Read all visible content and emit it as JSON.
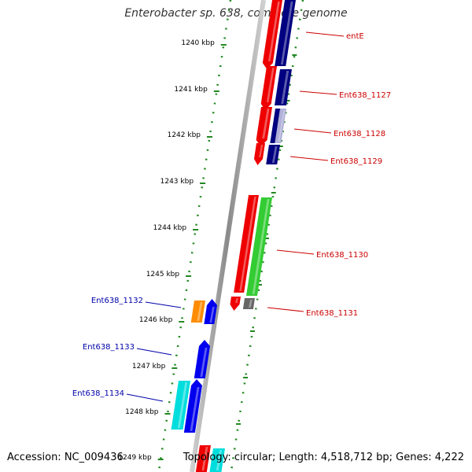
{
  "title": "Enterobacter sp. 638, complete genome",
  "footer": {
    "accession": "Accession: NC_009436",
    "stats": "Topology: circular; Length: 4,518,712 bp; Genes: 4,222"
  },
  "ticks": [
    "1240 kbp",
    "1241 kbp",
    "1242 kbp",
    "1243 kbp",
    "1244 kbp",
    "1245 kbp",
    "1246 kbp",
    "1247 kbp",
    "1248 kbp",
    "1249 kbp"
  ],
  "genes": {
    "right": [
      "entE",
      "Ent638_1127",
      "Ent638_1128",
      "Ent638_1129",
      "Ent638_1130",
      "Ent638_1131"
    ],
    "left": [
      "Ent638_1132",
      "Ent638_1133",
      "Ent638_1134"
    ]
  },
  "colors": {
    "red": "#ee0000",
    "navy": "#000080",
    "green": "#33cc33",
    "gray": "#666666",
    "orange": "#ff8c00",
    "blue": "#0000ee",
    "cyan": "#00dddd",
    "right_label": "#cc0000",
    "left_label": "#0000aa",
    "tick": "#228822"
  }
}
